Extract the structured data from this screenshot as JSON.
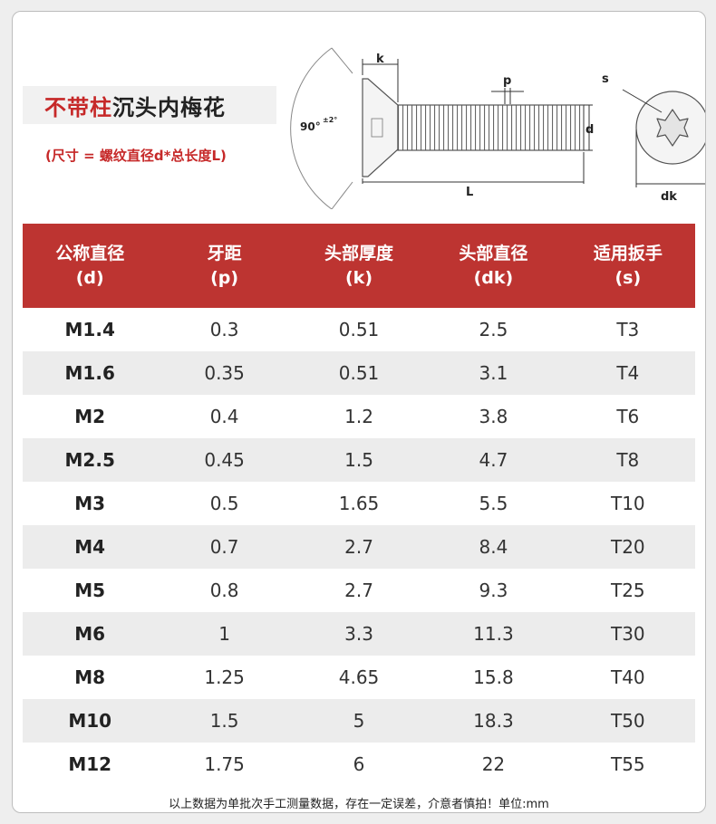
{
  "title": {
    "part1": "不带柱",
    "part2": "沉头内梅花"
  },
  "subtitle": "(尺寸 = 螺纹直径d*总长度L)",
  "diagram": {
    "label_k": "k",
    "label_p": "p",
    "label_d": "d",
    "label_L": "L",
    "label_angle": "90°",
    "label_angle_tol": "±2°",
    "label_s": "s",
    "label_dk": "dk"
  },
  "table": {
    "headers": [
      {
        "line1": "公称直径",
        "line2": "(d)"
      },
      {
        "line1": "牙距",
        "line2": "(p)"
      },
      {
        "line1": "头部厚度",
        "line2": "(k)"
      },
      {
        "line1": "头部直径",
        "line2": "(dk)"
      },
      {
        "line1": "适用扳手",
        "line2": "(s)"
      }
    ],
    "rows": [
      [
        "M1.4",
        "0.3",
        "0.51",
        "2.5",
        "T3"
      ],
      [
        "M1.6",
        "0.35",
        "0.51",
        "3.1",
        "T4"
      ],
      [
        "M2",
        "0.4",
        "1.2",
        "3.8",
        "T6"
      ],
      [
        "M2.5",
        "0.45",
        "1.5",
        "4.7",
        "T8"
      ],
      [
        "M3",
        "0.5",
        "1.65",
        "5.5",
        "T10"
      ],
      [
        "M4",
        "0.7",
        "2.7",
        "8.4",
        "T20"
      ],
      [
        "M5",
        "0.8",
        "2.7",
        "9.3",
        "T25"
      ],
      [
        "M6",
        "1",
        "3.3",
        "11.3",
        "T30"
      ],
      [
        "M8",
        "1.25",
        "4.65",
        "15.8",
        "T40"
      ],
      [
        "M10",
        "1.5",
        "5",
        "18.3",
        "T50"
      ],
      [
        "M12",
        "1.75",
        "6",
        "22",
        "T55"
      ]
    ]
  },
  "footnote": "以上数据为单批次手工测量数据，存在一定误差，介意者慎拍！单位:mm",
  "colors": {
    "accent": "#bd3431",
    "title_red": "#c62828",
    "row_alt": "#ececec"
  }
}
